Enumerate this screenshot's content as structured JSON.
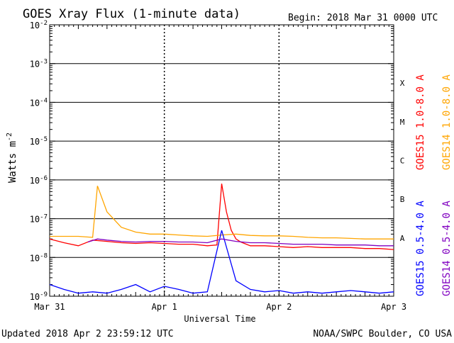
{
  "header": {
    "title": "GOES Xray Flux (1-minute data)",
    "begin": "Begin:  2018 Mar 31 0000 UTC"
  },
  "footer": {
    "updated": "Updated 2018 Apr  2 23:59:12 UTC",
    "credit": "NOAA/SWPC Boulder, CO USA"
  },
  "chart_data": {
    "type": "line",
    "title": "GOES Xray Flux (1-minute data)",
    "xlabel": "Universal Time",
    "ylabel": "Watts m",
    "ylabel_exponent": "-2",
    "y_scale": "log",
    "ylim": [
      1e-09,
      0.01
    ],
    "xlim": [
      "2018-03-31T00:00",
      "2018-04-03T00:00"
    ],
    "x_ticks": [
      "Mar 31",
      "Apr 1",
      "Apr 2",
      "Apr 3"
    ],
    "y_ticks": [
      {
        "base": "10",
        "exp": "-9"
      },
      {
        "base": "10",
        "exp": "-8"
      },
      {
        "base": "10",
        "exp": "-7"
      },
      {
        "base": "10",
        "exp": "-6"
      },
      {
        "base": "10",
        "exp": "-5"
      },
      {
        "base": "10",
        "exp": "-4"
      },
      {
        "base": "10",
        "exp": "-3"
      },
      {
        "base": "10",
        "exp": "-2"
      }
    ],
    "flare_classes": [
      "X",
      "M",
      "C",
      "B",
      "A"
    ],
    "grid": true,
    "legend_position": "right",
    "series": [
      {
        "name": "GOES15 1.0-8.0 A",
        "color": "#ff0000",
        "x": [
          "2018-03-31T00:00",
          "2018-03-31T03:00",
          "2018-03-31T06:00",
          "2018-03-31T09:00",
          "2018-03-31T12:00",
          "2018-03-31T15:00",
          "2018-03-31T18:00",
          "2018-03-31T21:00",
          "2018-04-01T00:00",
          "2018-04-01T03:00",
          "2018-04-01T06:00",
          "2018-04-01T09:00",
          "2018-04-01T11:00",
          "2018-04-01T12:00",
          "2018-04-01T13:00",
          "2018-04-01T14:00",
          "2018-04-01T15:00",
          "2018-04-01T16:00",
          "2018-04-01T18:00",
          "2018-04-01T21:00",
          "2018-04-02T00:00",
          "2018-04-02T03:00",
          "2018-04-02T06:00",
          "2018-04-02T09:00",
          "2018-04-02T12:00",
          "2018-04-02T15:00",
          "2018-04-02T18:00",
          "2018-04-02T21:00",
          "2018-04-03T00:00"
        ],
        "y": [
          3e-08,
          2.4e-08,
          2e-08,
          2.8e-08,
          2.6e-08,
          2.4e-08,
          2.3e-08,
          2.4e-08,
          2.3e-08,
          2.2e-08,
          2.2e-08,
          2e-08,
          2.1e-08,
          8e-07,
          1.5e-07,
          5e-08,
          3e-08,
          2.5e-08,
          2e-08,
          2e-08,
          1.9e-08,
          1.8e-08,
          1.9e-08,
          1.8e-08,
          1.8e-08,
          1.8e-08,
          1.7e-08,
          1.7e-08,
          1.6e-08
        ]
      },
      {
        "name": "GOES14 1.0-8.0 A",
        "color": "#ffa500",
        "x": [
          "2018-03-31T00:00",
          "2018-03-31T03:00",
          "2018-03-31T06:00",
          "2018-03-31T09:00",
          "2018-03-31T10:00",
          "2018-03-31T12:00",
          "2018-03-31T15:00",
          "2018-03-31T18:00",
          "2018-03-31T21:00",
          "2018-04-01T00:00",
          "2018-04-01T03:00",
          "2018-04-01T06:00",
          "2018-04-01T09:00",
          "2018-04-01T12:00",
          "2018-04-01T15:00",
          "2018-04-01T18:00",
          "2018-04-01T21:00",
          "2018-04-02T00:00",
          "2018-04-02T03:00",
          "2018-04-02T06:00",
          "2018-04-02T09:00",
          "2018-04-02T12:00",
          "2018-04-02T15:00",
          "2018-04-02T18:00",
          "2018-04-02T21:00",
          "2018-04-03T00:00"
        ],
        "y": [
          3.5e-08,
          3.5e-08,
          3.5e-08,
          3.3e-08,
          7e-07,
          1.5e-07,
          6e-08,
          4.5e-08,
          4e-08,
          4e-08,
          3.8e-08,
          3.6e-08,
          3.5e-08,
          3.8e-08,
          4e-08,
          3.7e-08,
          3.6e-08,
          3.6e-08,
          3.5e-08,
          3.3e-08,
          3.2e-08,
          3.2e-08,
          3.1e-08,
          3e-08,
          3e-08,
          3e-08
        ]
      },
      {
        "name": "GOES15 0.5-4.0 A",
        "color": "#0000ff",
        "x": [
          "2018-03-31T00:00",
          "2018-03-31T03:00",
          "2018-03-31T06:00",
          "2018-03-31T09:00",
          "2018-03-31T12:00",
          "2018-03-31T15:00",
          "2018-03-31T18:00",
          "2018-03-31T21:00",
          "2018-04-01T00:00",
          "2018-04-01T03:00",
          "2018-04-01T06:00",
          "2018-04-01T09:00",
          "2018-04-01T12:00",
          "2018-04-01T15:00",
          "2018-04-01T18:00",
          "2018-04-01T21:00",
          "2018-04-02T00:00",
          "2018-04-02T03:00",
          "2018-04-02T06:00",
          "2018-04-02T09:00",
          "2018-04-02T12:00",
          "2018-04-02T15:00",
          "2018-04-02T18:00",
          "2018-04-02T21:00",
          "2018-04-03T00:00"
        ],
        "y": [
          2e-09,
          1.5e-09,
          1.2e-09,
          1.3e-09,
          1.2e-09,
          1.5e-09,
          2e-09,
          1.3e-09,
          1.8e-09,
          1.5e-09,
          1.2e-09,
          1.3e-09,
          5e-08,
          2.5e-09,
          1.5e-09,
          1.3e-09,
          1.4e-09,
          1.2e-09,
          1.3e-09,
          1.2e-09,
          1.3e-09,
          1.4e-09,
          1.3e-09,
          1.2e-09,
          1.3e-09
        ]
      },
      {
        "name": "GOES14 0.5-4.0 A",
        "color": "#8000c0",
        "x": [
          "2018-03-31T08:00",
          "2018-03-31T10:00",
          "2018-03-31T12:00",
          "2018-03-31T15:00",
          "2018-03-31T18:00",
          "2018-03-31T21:00",
          "2018-04-01T00:00",
          "2018-04-01T03:00",
          "2018-04-01T06:00",
          "2018-04-01T09:00",
          "2018-04-01T12:00",
          "2018-04-01T15:00",
          "2018-04-01T18:00",
          "2018-04-01T21:00",
          "2018-04-02T00:00",
          "2018-04-02T03:00",
          "2018-04-02T06:00",
          "2018-04-02T09:00",
          "2018-04-02T12:00",
          "2018-04-02T15:00",
          "2018-04-02T18:00",
          "2018-04-02T21:00",
          "2018-04-03T00:00"
        ],
        "y": [
          2.5e-08,
          3e-08,
          2.8e-08,
          2.6e-08,
          2.5e-08,
          2.6e-08,
          2.6e-08,
          2.5e-08,
          2.5e-08,
          2.4e-08,
          3e-08,
          2.6e-08,
          2.4e-08,
          2.4e-08,
          2.3e-08,
          2.2e-08,
          2.2e-08,
          2.2e-08,
          2.1e-08,
          2.1e-08,
          2.1e-08,
          2e-08,
          2e-08
        ]
      }
    ]
  }
}
